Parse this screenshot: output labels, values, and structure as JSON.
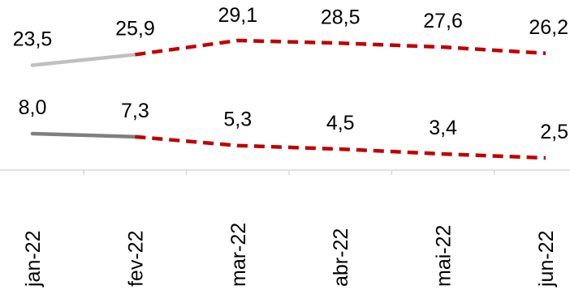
{
  "chart_data": {
    "type": "line",
    "categories": [
      "jan-22",
      "fev-22",
      "mar-22",
      "abr-22",
      "mai-22",
      "jun-22"
    ],
    "series": [
      {
        "values": [
          23.5,
          25.9,
          29.1,
          28.5,
          27.6,
          26.2
        ],
        "labels": [
          "23,5",
          "25,9",
          "29,1",
          "28,5",
          "27,6",
          "26,2"
        ],
        "actual_color": "#BFBFBF",
        "projection_color": "#C00000"
      },
      {
        "values": [
          8.0,
          7.3,
          5.3,
          4.5,
          3.4,
          2.5
        ],
        "labels": [
          "8,0",
          "7,3",
          "5,3",
          "4,5",
          "3,4",
          "2,5"
        ],
        "actual_color": "#7F7F7F",
        "projection_color": "#C00000"
      }
    ],
    "actual_through_index": 1,
    "axis_color": "#D9D9D9",
    "grid": false,
    "legend": "none"
  }
}
